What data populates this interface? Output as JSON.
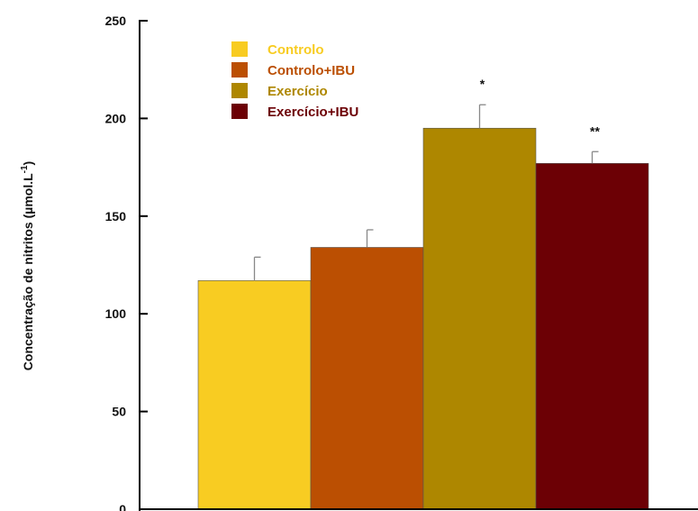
{
  "chart_data": {
    "type": "bar",
    "ylabel": "Concentração de nitritos (µmol.L",
    "ylabel_sup": "-1",
    "ylabel_end": ")",
    "ylim": [
      0,
      250
    ],
    "yticks": [
      0,
      50,
      100,
      150,
      200,
      250
    ],
    "grid": false,
    "legend_position": "top-left",
    "series": [
      {
        "name": "Controlo",
        "value": 117,
        "error": 12,
        "color": "#f8cc22",
        "text_color": "#f8cc22",
        "annotation": ""
      },
      {
        "name": "Controlo+IBU",
        "value": 134,
        "error": 9,
        "color": "#bb4f02",
        "text_color": "#bb4f02",
        "annotation": ""
      },
      {
        "name": "Exercício",
        "value": 195,
        "error": 12,
        "color": "#ae8700",
        "text_color": "#ae8700",
        "annotation": "*"
      },
      {
        "name": "Exercício+IBU",
        "value": 177,
        "error": 6,
        "color": "#6c0005",
        "text_color": "#6c0005",
        "annotation": "**"
      }
    ]
  }
}
